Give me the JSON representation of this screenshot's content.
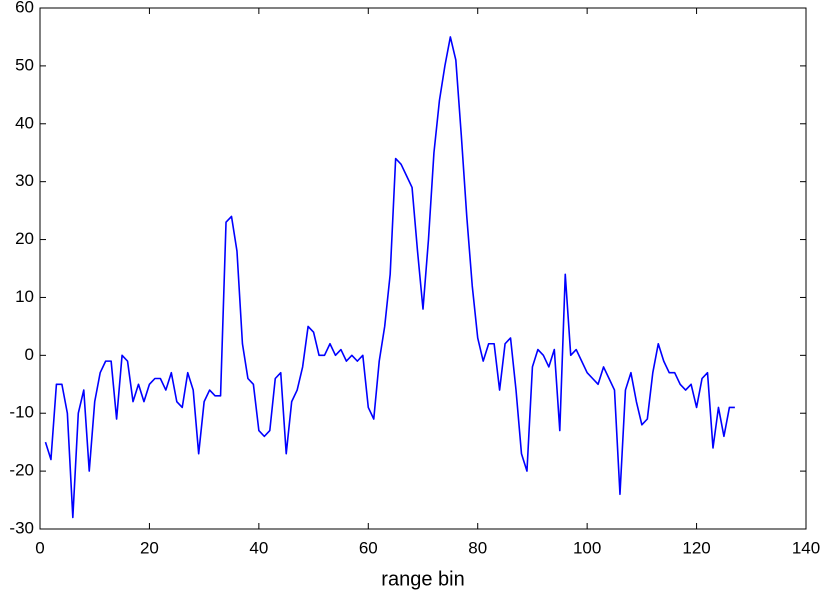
{
  "chart_data": {
    "type": "line",
    "xlabel": "range bin",
    "x": [
      1,
      2,
      3,
      4,
      5,
      6,
      7,
      8,
      9,
      10,
      11,
      12,
      13,
      14,
      15,
      16,
      17,
      18,
      19,
      20,
      21,
      22,
      23,
      24,
      25,
      26,
      27,
      28,
      29,
      30,
      31,
      32,
      33,
      34,
      35,
      36,
      37,
      38,
      39,
      40,
      41,
      42,
      43,
      44,
      45,
      46,
      47,
      48,
      49,
      50,
      51,
      52,
      53,
      54,
      55,
      56,
      57,
      58,
      59,
      60,
      61,
      62,
      63,
      64,
      65,
      66,
      67,
      68,
      69,
      70,
      71,
      72,
      73,
      74,
      75,
      76,
      77,
      78,
      79,
      80,
      81,
      82,
      83,
      84,
      85,
      86,
      87,
      88,
      89,
      90,
      91,
      92,
      93,
      94,
      95,
      96,
      97,
      98,
      99,
      100,
      101,
      102,
      103,
      104,
      105,
      106,
      107,
      108,
      109,
      110,
      111,
      112,
      113,
      114,
      115,
      116,
      117,
      118,
      119,
      120,
      121,
      122,
      123,
      124,
      125,
      126,
      127
    ],
    "series": [
      {
        "color": "#0000ff",
        "values": [
          -15,
          -18,
          -5,
          -5,
          -10,
          -28,
          -10,
          -6,
          -20,
          -8,
          -3,
          -1,
          -1,
          -11,
          0,
          -1,
          -8,
          -5,
          -8,
          -5,
          -4,
          -4,
          -6,
          -3,
          -8,
          -9,
          -3,
          -6,
          -17,
          -8,
          -6,
          -7,
          -7,
          23,
          24,
          18,
          2,
          -4,
          -5,
          -13,
          -14,
          -13,
          -4,
          -3,
          -17,
          -8,
          -6,
          -2,
          5,
          4,
          0,
          0,
          2,
          0,
          1,
          -1,
          0,
          -1,
          0,
          -9,
          -11,
          -1,
          5,
          14,
          34,
          33,
          31,
          29,
          18,
          8,
          20,
          35,
          44,
          50,
          55,
          51,
          38,
          24,
          12,
          3,
          -1,
          2,
          2,
          -6,
          2,
          3,
          -6,
          -17,
          -20,
          -2,
          1,
          0,
          -2,
          1,
          -13,
          14,
          0,
          1,
          -1,
          -3,
          -4,
          -5,
          -2,
          -4,
          -6,
          -24,
          -6,
          -3,
          -8,
          -12,
          -11,
          -3,
          2,
          -1,
          -3,
          -3,
          -5,
          -6,
          -5,
          -9,
          -4,
          -3,
          -16,
          -9,
          -14,
          -9,
          -9
        ]
      }
    ],
    "xlim": [
      0,
      140
    ],
    "xticks": [
      0,
      20,
      40,
      60,
      80,
      100,
      120,
      140
    ],
    "ylim": [
      -30,
      60
    ],
    "yticks": [
      -30,
      -20,
      -10,
      0,
      10,
      20,
      30,
      40,
      50,
      60
    ]
  }
}
